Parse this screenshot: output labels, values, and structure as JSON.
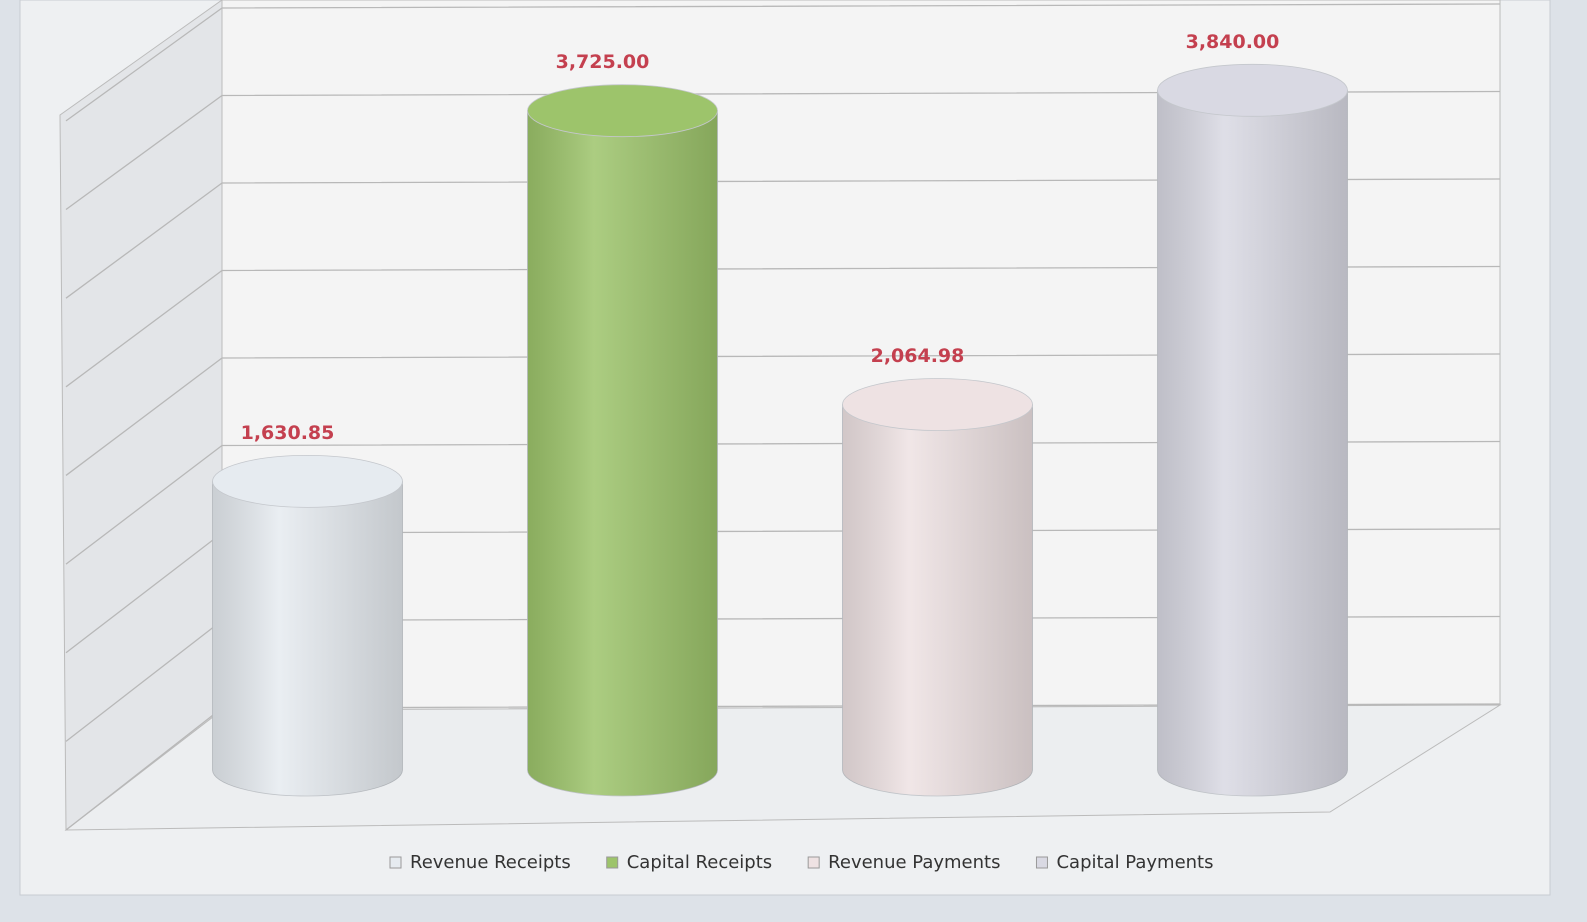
{
  "chart_data": {
    "type": "bar",
    "categories": [
      null
    ],
    "series": [
      {
        "name": "Revenue Receipts",
        "color": "#e6ebf0",
        "values": [
          1630.85
        ],
        "value_labels": [
          "1,630.85"
        ]
      },
      {
        "name": "Capital Receipts",
        "color": "#9dc46b",
        "values": [
          3725.0
        ],
        "value_labels": [
          "3,725.00"
        ]
      },
      {
        "name": "Revenue Payments",
        "color": "#eee2e3",
        "values": [
          2064.98
        ],
        "value_labels": [
          "2,064.98"
        ]
      },
      {
        "name": "Capital Payments",
        "color": "#d9d9e3",
        "values": [
          3840.0
        ],
        "value_labels": [
          "3,840.00"
        ]
      }
    ],
    "ylim": [
      0,
      4000
    ],
    "yticks": [
      0,
      500,
      1000,
      1500,
      2000,
      2500,
      3000,
      3500,
      4000
    ],
    "grid": true,
    "legend": "bottom"
  }
}
